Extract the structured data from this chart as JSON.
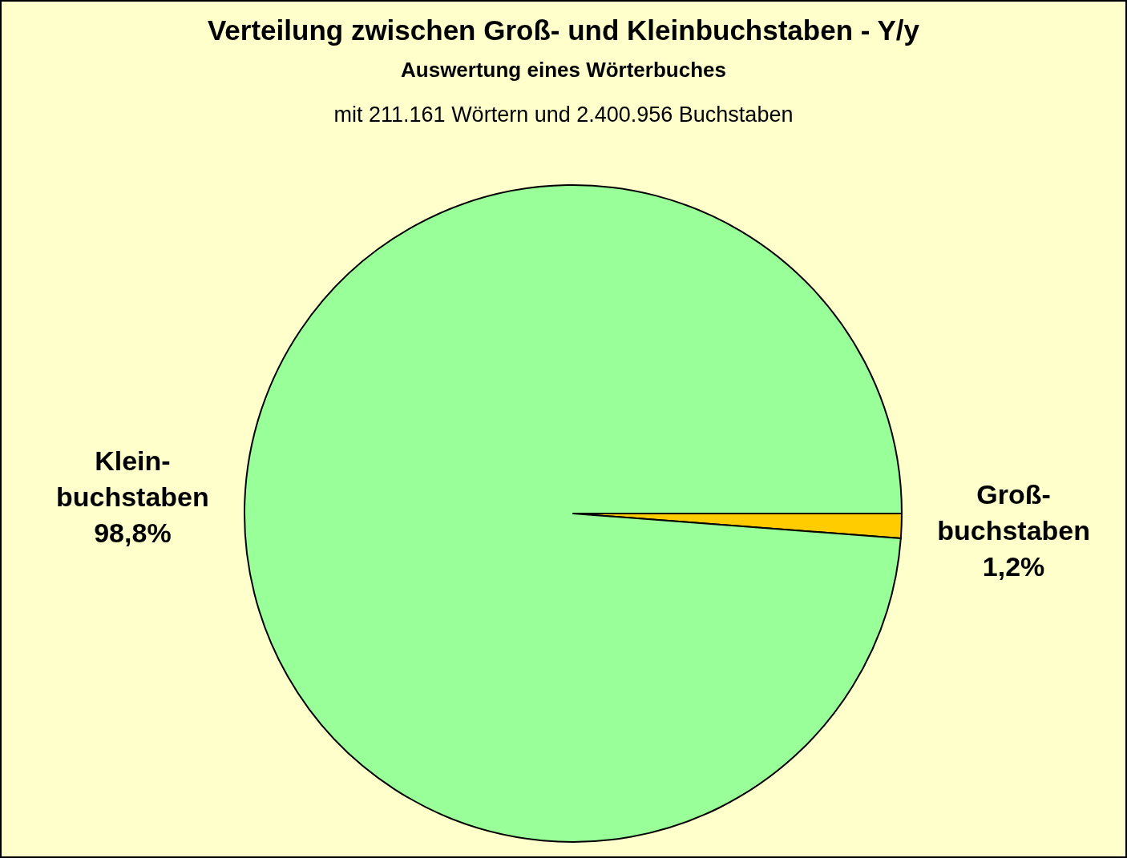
{
  "chart_data": {
    "type": "pie",
    "title": "Verteilung zwischen Groß- und Kleinbuchstaben - Y/y",
    "subtitle": "Auswertung eines Wörterbuches",
    "annotations": [
      "mit 211.161 Wörtern und 2.400.956 Buchstaben"
    ],
    "categories": [
      "Groß-\nbuchstaben",
      "Klein-\nbuchstaben"
    ],
    "values": [
      1.2,
      98.8
    ],
    "colors": [
      "#ffcc00",
      "#99ff99"
    ],
    "value_labels": [
      "1,2%",
      "98,8%"
    ]
  }
}
